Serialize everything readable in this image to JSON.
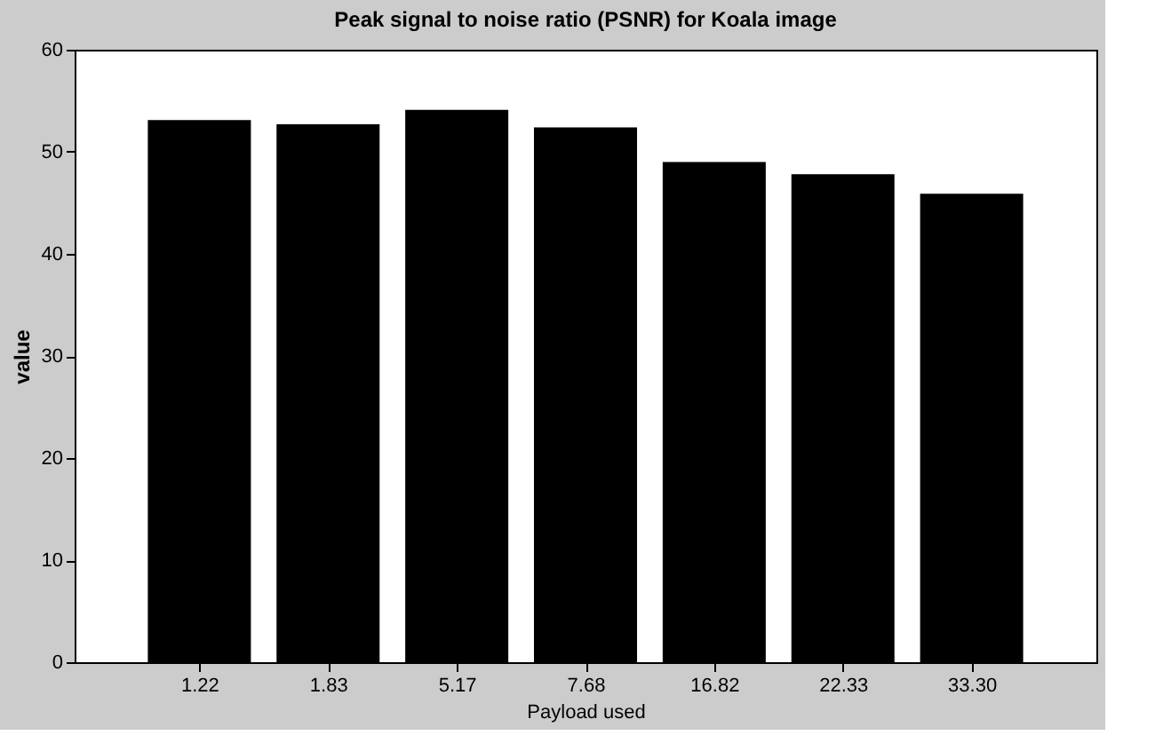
{
  "chart_data": {
    "type": "bar",
    "title": "Peak signal to noise ratio (PSNR) for Koala image",
    "xlabel": "Payload used",
    "ylabel": "value",
    "categories": [
      "1.22",
      "1.83",
      "5.17",
      "7.68",
      "16.82",
      "22.33",
      "33.30"
    ],
    "values": [
      53.1,
      52.7,
      54.1,
      52.4,
      49.0,
      47.8,
      45.9
    ],
    "color": "#000000",
    "ylim": [
      0,
      60
    ],
    "yticks": [
      0,
      10,
      20,
      30,
      40,
      50,
      60
    ],
    "grid": false
  }
}
